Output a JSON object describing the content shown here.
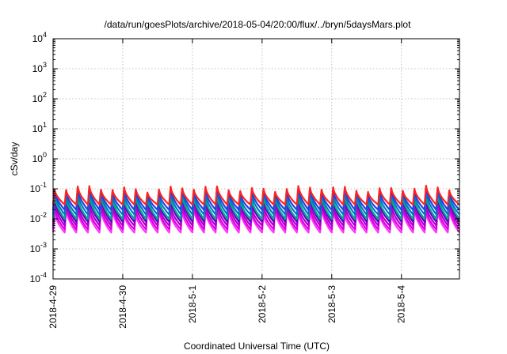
{
  "chart_data": {
    "type": "line",
    "title": "/data/run/goesPlots/archive/2018-05-04/20:00/flux/../bryn/5daysMars.plot",
    "xlabel": "Coordinated Universal Time (UTC)",
    "ylabel": "cSv/day",
    "yscale": "log",
    "ylim": [
      0.0001,
      10000
    ],
    "xlim": [
      "2018-04-29T00:00",
      "2018-05-04T20:00"
    ],
    "x_ticks": [
      "2018-4-29",
      "2018-4-30",
      "2018-5-1",
      "2018-5-2",
      "2018-5-3",
      "2018-5-4"
    ],
    "y_ticks": [
      {
        "base": "10",
        "exp": "-4"
      },
      {
        "base": "10",
        "exp": "-3"
      },
      {
        "base": "10",
        "exp": "-2"
      },
      {
        "base": "10",
        "exp": "-1"
      },
      {
        "base": "10",
        "exp": "0"
      },
      {
        "base": "10",
        "exp": "1"
      },
      {
        "base": "10",
        "exp": "2"
      },
      {
        "base": "10",
        "exp": "3"
      },
      {
        "base": "10",
        "exp": "4"
      }
    ],
    "grid": true,
    "periodic_pattern": {
      "cycles_per_day": 6,
      "description_values_at_cycle_peak_and_trough": true
    },
    "series": [
      {
        "color": "#ff33ff",
        "peak": 0.02,
        "trough": 0.0035
      },
      {
        "color": "#dd00dd",
        "peak": 0.025,
        "trough": 0.0045
      },
      {
        "color": "#aa00cc",
        "peak": 0.035,
        "trough": 0.006
      },
      {
        "color": "#6600cc",
        "peak": 0.05,
        "trough": 0.008
      },
      {
        "color": "#00aa88",
        "peak": 0.06,
        "trough": 0.01
      },
      {
        "color": "#0077cc",
        "peak": 0.08,
        "trough": 0.014
      },
      {
        "color": "#2244dd",
        "peak": 0.1,
        "trough": 0.02
      },
      {
        "color": "#ff2222",
        "peak": 0.11,
        "trough": 0.03
      }
    ]
  }
}
